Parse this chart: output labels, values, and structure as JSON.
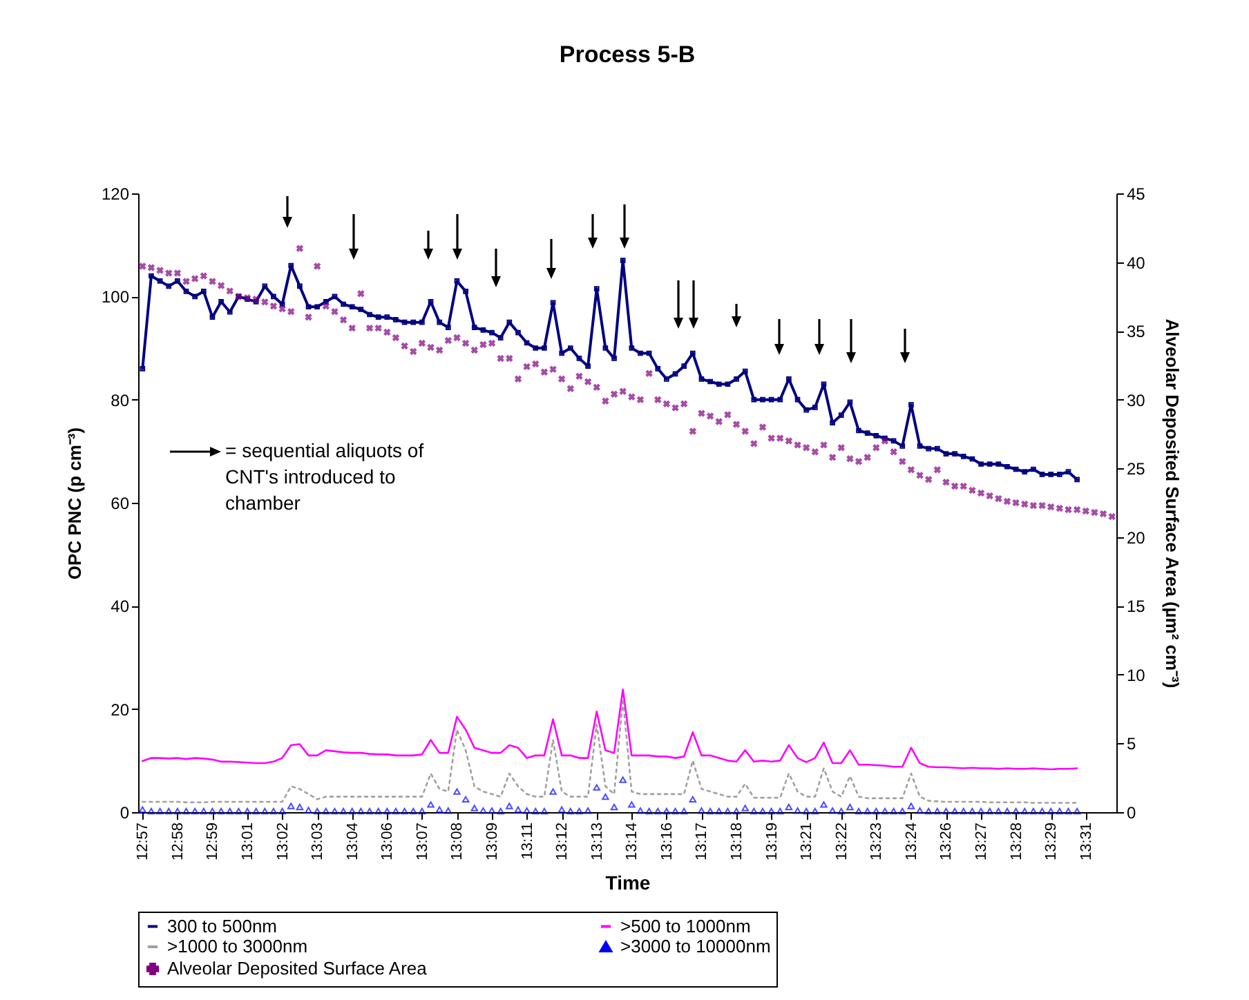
{
  "chart_data": {
    "type": "line",
    "title": "Process 5-B",
    "xlabel": "Time",
    "ylabel": "OPC PNC (p cm⁻³)",
    "y2label": "Alveolar Deposited Surface Area  (µm² cm⁻³)",
    "categories": [
      "12:57",
      null,
      null,
      null,
      "12:58",
      null,
      null,
      null,
      "12:59",
      null,
      null,
      null,
      "13:01",
      null,
      null,
      null,
      "13:02",
      null,
      null,
      null,
      "13:03",
      null,
      null,
      null,
      "13:04",
      null,
      null,
      null,
      "13:06",
      null,
      null,
      null,
      "13:07",
      null,
      null,
      null,
      "13:08",
      null,
      null,
      null,
      "13:09",
      null,
      null,
      null,
      "13:11",
      null,
      null,
      null,
      "13:12",
      null,
      null,
      null,
      "13:13",
      null,
      null,
      null,
      "13:14",
      null,
      null,
      null,
      "13:16",
      null,
      null,
      null,
      "13:17",
      null,
      null,
      null,
      "13:18",
      null,
      null,
      null,
      "13:19",
      null,
      null,
      null,
      "13:21",
      null,
      null,
      null,
      "13:22",
      null,
      null,
      null,
      "13:23",
      null,
      null,
      null,
      "13:24",
      null,
      null,
      null,
      "13:26",
      null,
      null,
      null,
      "13:27",
      null,
      null,
      null,
      "13:28",
      null,
      null,
      null,
      "13:29",
      null,
      null,
      null,
      "13:31",
      null,
      null,
      null
    ],
    "series": [
      {
        "name": "300 to 500nm",
        "marker": "square",
        "color": "#000080",
        "values": [
          86,
          104,
          103,
          102,
          103,
          101,
          100,
          101,
          96,
          99,
          97,
          100,
          99.5,
          99,
          102,
          100,
          98.5,
          106,
          102,
          98,
          98,
          99,
          100,
          98.5,
          98,
          97.5,
          96.5,
          96,
          96,
          95.5,
          95,
          95,
          95,
          99,
          95,
          94,
          103,
          101,
          94,
          93.5,
          93,
          92,
          95,
          93,
          91,
          90,
          90,
          98.8,
          89,
          90,
          88,
          86.5,
          101.5,
          90,
          88,
          107,
          90,
          89,
          89,
          86,
          84,
          85,
          86.5,
          89,
          84,
          83.5,
          83,
          83,
          84,
          85.5,
          80,
          80,
          80,
          80,
          84,
          80,
          78,
          78.5,
          83,
          75.5,
          77,
          79.5,
          74,
          73.5,
          73,
          72.5,
          72,
          71,
          79,
          71,
          70.5,
          70.5,
          69.5,
          69.5,
          69,
          68.5,
          67.5,
          67.5,
          67.5,
          67,
          66.5,
          66,
          66.5,
          65.5,
          65.5,
          65.5,
          66,
          64.5,
          null,
          null,
          null,
          null
        ]
      },
      {
        "name": ">500 to 1000nm",
        "color": "#ff00ff",
        "values": [
          9.9,
          10.5,
          10.5,
          10.4,
          10.5,
          10.3,
          10.5,
          10.4,
          10.2,
          9.8,
          9.8,
          9.7,
          9.6,
          9.5,
          9.5,
          9.8,
          10.5,
          13,
          13.2,
          11,
          11,
          12,
          11.8,
          11.6,
          11.5,
          11.5,
          11.3,
          11.2,
          11.2,
          11,
          11,
          11,
          11.2,
          14,
          11.5,
          11.5,
          18.5,
          16,
          12.5,
          12,
          11.5,
          11.5,
          13,
          12.5,
          10.5,
          11,
          11,
          18,
          11,
          11,
          10.5,
          10.5,
          19.5,
          12,
          11.5,
          23.8,
          11,
          11,
          11,
          10.8,
          10.8,
          10.5,
          10.8,
          15.5,
          11,
          11,
          10.5,
          10,
          9.8,
          12,
          9.8,
          10,
          9.8,
          10,
          13,
          10.5,
          9.7,
          10.5,
          13.5,
          9.5,
          9.5,
          12,
          9.2,
          9.2,
          9.1,
          9,
          8.8,
          8.8,
          12.5,
          9.5,
          8.8,
          8.7,
          8.7,
          8.6,
          8.5,
          8.6,
          8.5,
          8.5,
          8.4,
          8.5,
          8.4,
          8.4,
          8.5,
          8.4,
          8.3,
          8.4,
          8.4,
          8.5,
          null,
          null,
          null,
          null
        ]
      },
      {
        "name": ">1000 to 3000nm",
        "line_style": "dotted",
        "color": "#a0a0a0",
        "values": [
          2,
          2,
          2,
          2,
          2,
          1.9,
          1.9,
          1.9,
          2,
          2,
          2,
          2,
          2,
          2,
          2,
          2,
          2,
          5,
          4.5,
          3.5,
          2.5,
          3,
          3,
          3,
          3,
          3,
          3,
          3,
          3,
          3,
          3,
          3,
          3,
          7.5,
          4.5,
          4,
          16,
          12,
          5,
          4,
          3.5,
          3,
          7.5,
          5,
          3.5,
          3,
          3,
          14,
          4,
          3,
          3,
          3,
          17,
          5,
          3.5,
          22,
          4,
          3.5,
          3.5,
          3.5,
          3.5,
          3.5,
          3.5,
          10,
          4.5,
          4,
          3.5,
          3,
          3,
          5.5,
          2.8,
          2.8,
          2.8,
          2.8,
          7.5,
          4,
          3,
          3,
          8.5,
          4,
          3,
          7,
          3,
          2.7,
          2.7,
          2.7,
          2.7,
          2.7,
          7.5,
          3,
          2.2,
          2.1,
          2,
          2,
          2,
          2,
          2,
          1.9,
          1.9,
          1.9,
          1.9,
          1.9,
          1.8,
          1.8,
          1.8,
          1.8,
          1.8,
          1.8,
          null,
          null,
          null,
          null
        ]
      },
      {
        "name": ">3000 to 10000nm",
        "type": "scatter",
        "marker": "triangle",
        "color": "#0000ff",
        "values": [
          0.5,
          0.2,
          0.2,
          0.2,
          0.2,
          0.2,
          0.2,
          0.2,
          0.2,
          0.2,
          0.2,
          0.2,
          0.2,
          0.2,
          0.2,
          0.2,
          0.2,
          1.2,
          1,
          0.4,
          0.2,
          0.2,
          0.2,
          0.2,
          0.2,
          0.2,
          0.2,
          0.2,
          0.2,
          0.2,
          0.2,
          0.2,
          0.2,
          1.5,
          0.5,
          0.3,
          4,
          2.5,
          0.8,
          0.3,
          0.3,
          0.2,
          1.2,
          0.5,
          0.3,
          0.2,
          0.2,
          4,
          0.5,
          0.2,
          0.2,
          0.3,
          4.8,
          3,
          1,
          6.3,
          1.5,
          0.3,
          0.2,
          0.2,
          0.2,
          0.2,
          0.2,
          2.5,
          0.3,
          0.2,
          0.2,
          0.2,
          0.2,
          0.8,
          0.2,
          0.2,
          0.2,
          0.2,
          1,
          0.3,
          0.2,
          0.2,
          1.5,
          0.3,
          0.2,
          1,
          0.2,
          0.2,
          0.2,
          0.2,
          0.2,
          0.2,
          1.2,
          0.3,
          0.2,
          0.2,
          0.2,
          0.2,
          0.2,
          0.2,
          0.2,
          0.2,
          0.2,
          0.2,
          0.2,
          0.2,
          0.2,
          0.2,
          0.2,
          0.2,
          0.2,
          0.2,
          null,
          null,
          null,
          null
        ]
      },
      {
        "name": "Alveolar Deposited Surface Area",
        "type": "scatter",
        "marker": "cross",
        "axis": "y2",
        "color": "#800080",
        "values": [
          39.7,
          39.6,
          39.4,
          39.2,
          39.2,
          38.6,
          38.8,
          39,
          38.6,
          38.3,
          37.9,
          37.5,
          37.4,
          37.3,
          37.1,
          36.8,
          36.6,
          36.4,
          41,
          36,
          39.7,
          36.8,
          36.4,
          35.8,
          35.2,
          37.7,
          35.2,
          35.2,
          34.9,
          34.5,
          33.9,
          33.5,
          34.1,
          33.8,
          33.6,
          34.3,
          34.5,
          34.1,
          33.6,
          34,
          34.1,
          33,
          33,
          31.5,
          32.4,
          32.6,
          32,
          32.2,
          31.5,
          30.8,
          31.7,
          31.3,
          30.9,
          29.9,
          30.4,
          30.6,
          30.2,
          30,
          31.9,
          30,
          29.7,
          29.4,
          29.7,
          27.7,
          29,
          28.8,
          28.4,
          28.9,
          28.2,
          27.7,
          26.8,
          28,
          27.2,
          27.2,
          27,
          26.7,
          26.5,
          26.2,
          26.7,
          25.8,
          26.5,
          25.7,
          25.5,
          25.8,
          26.5,
          27,
          26.2,
          25.5,
          24.9,
          24.5,
          24.2,
          24.9,
          24,
          23.7,
          23.7,
          23.4,
          23.2,
          23,
          22.8,
          22.6,
          22.5,
          22.4,
          22.3,
          22.3,
          22.2,
          22.1,
          22,
          22,
          21.9,
          21.8,
          21.7,
          21.5
        ]
      }
    ],
    "ylim": [
      0,
      120
    ],
    "yticks": [
      0,
      20,
      40,
      60,
      80,
      100,
      120
    ],
    "y2lim": [
      0,
      45
    ],
    "y2ticks": [
      0,
      5,
      10,
      15,
      20,
      25,
      30,
      35,
      40,
      45
    ],
    "legend": "bottom",
    "annotations": [
      "= sequential aliquots of CNT's introduced to chamber"
    ]
  }
}
